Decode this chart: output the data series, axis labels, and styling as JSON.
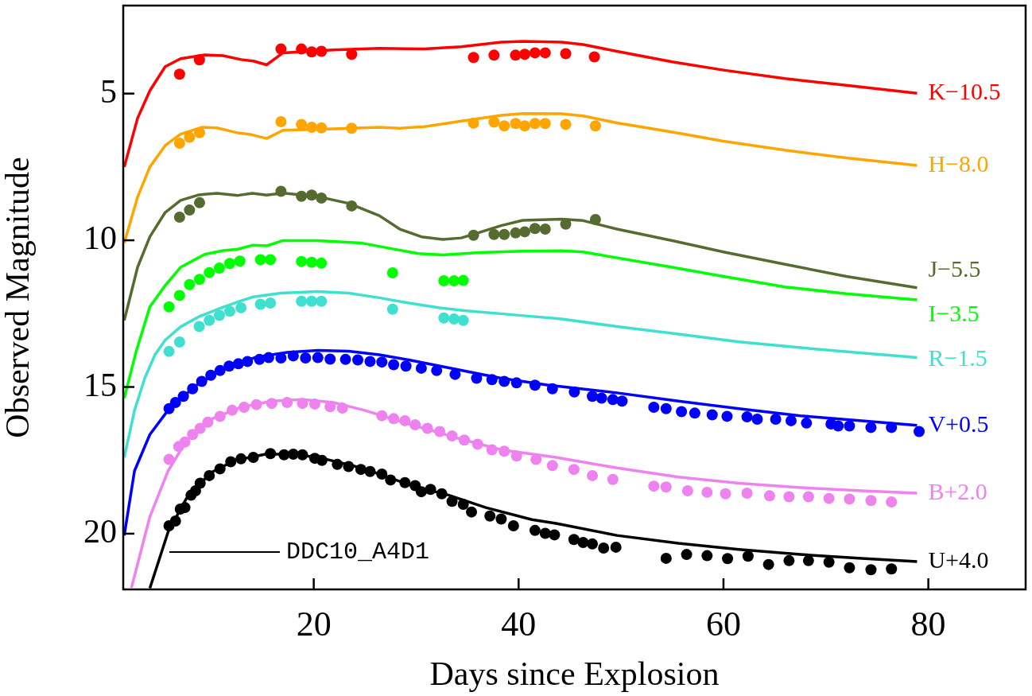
{
  "chart_data": {
    "type": "line",
    "xlabel": "Days since Explosion",
    "ylabel": "Observed Magnitude",
    "marker": "circle",
    "xlim": [
      1.4,
      89.5
    ],
    "ylim": [
      21.9,
      2.0
    ],
    "xticks": [
      20,
      40,
      60,
      80
    ],
    "yticks": [
      5,
      10,
      15,
      20
    ],
    "series": [
      {
        "name": "K−10.5",
        "marker": "none",
        "color": "#ff0000",
        "x": [
          1.5,
          2.8,
          4.0,
          5.5,
          7.0,
          9.36,
          11.15,
          12.9,
          14.1,
          15.4,
          17.0,
          21.9,
          26.4,
          30.8,
          34.4,
          38.3,
          40.4,
          44.2,
          46.3,
          49.6,
          55.0,
          60.0,
          66.0,
          72.0,
          78.9
        ],
        "values": [
          7.5,
          5.84,
          4.9,
          4.08,
          3.81,
          3.68,
          3.71,
          3.84,
          3.89,
          4.02,
          3.61,
          3.51,
          3.46,
          3.48,
          3.4,
          3.25,
          3.22,
          3.25,
          3.33,
          3.56,
          3.92,
          4.2,
          4.49,
          4.72,
          4.99
        ]
      },
      {
        "name": "H−8.0",
        "marker": "none",
        "color": "#ffa500",
        "x": [
          1.5,
          2.8,
          4.0,
          5.5,
          7.0,
          9.06,
          10.55,
          12.6,
          13.8,
          15.4,
          17.0,
          21.9,
          26.4,
          28.4,
          30.8,
          34.4,
          38.3,
          40.4,
          44.2,
          46.3,
          49.6,
          55.0,
          60.0,
          66.0,
          72.0,
          78.9
        ],
        "values": [
          10.09,
          8.53,
          7.5,
          6.77,
          6.38,
          6.15,
          6.17,
          6.34,
          6.39,
          6.53,
          6.25,
          6.2,
          6.15,
          6.18,
          6.13,
          5.94,
          5.74,
          5.68,
          5.69,
          5.76,
          6.0,
          6.31,
          6.62,
          6.93,
          7.19,
          7.45
        ]
      },
      {
        "name": "J−5.5",
        "marker": "none",
        "color": "#556b2f",
        "x": [
          1.5,
          2.8,
          4.0,
          5.5,
          7.0,
          8.8,
          10.55,
          12.6,
          14.0,
          15.4,
          17.0,
          20.4,
          23.4,
          26.4,
          28.4,
          30.5,
          32.6,
          34.4,
          36.2,
          38.3,
          40.4,
          44.2,
          46.3,
          49.6,
          55.0,
          60.0,
          66.0,
          72.0,
          78.9
        ],
        "values": [
          12.73,
          10.92,
          9.88,
          9.05,
          8.64,
          8.45,
          8.4,
          8.47,
          8.4,
          8.46,
          8.39,
          8.51,
          8.74,
          9.16,
          9.62,
          9.88,
          9.97,
          9.92,
          9.73,
          9.5,
          9.32,
          9.28,
          9.33,
          9.62,
          10.01,
          10.4,
          10.82,
          11.23,
          11.62
        ]
      },
      {
        "name": "I−3.5",
        "marker": "none",
        "color": "#00ff00",
        "x": [
          1.5,
          2.65,
          4.0,
          5.5,
          7.0,
          9.36,
          11.15,
          12.6,
          14.0,
          15.4,
          17.0,
          20.4,
          24.6,
          27.8,
          30.2,
          32.6,
          36.2,
          40.4,
          44.2,
          46.3,
          55.0,
          60.0,
          66.0,
          72.0,
          78.9
        ],
        "values": [
          15.38,
          13.81,
          12.27,
          11.54,
          10.92,
          10.48,
          10.35,
          10.3,
          10.17,
          10.19,
          10.01,
          10.01,
          10.09,
          10.3,
          10.45,
          10.5,
          10.42,
          10.37,
          10.36,
          10.4,
          10.92,
          11.23,
          11.59,
          11.82,
          12.03
        ]
      },
      {
        "name": "R−1.5",
        "marker": "none",
        "color": "#40e0d0",
        "x": [
          1.5,
          2.5,
          3.5,
          4.5,
          5.5,
          7.0,
          8.8,
          10.85,
          12.9,
          14.1,
          16.8,
          20.4,
          23.4,
          26.4,
          29.3,
          32.3,
          34.7,
          39.8,
          44.2,
          49.6,
          55.6,
          61.5,
          67.5,
          73.5,
          78.9
        ],
        "values": [
          17.4,
          15.8,
          14.7,
          13.9,
          13.4,
          12.95,
          12.6,
          12.32,
          12.06,
          11.93,
          11.8,
          11.75,
          11.8,
          11.96,
          12.14,
          12.3,
          12.4,
          12.55,
          12.68,
          12.94,
          13.2,
          13.46,
          13.66,
          13.84,
          14.0
        ]
      },
      {
        "name": "V+0.5",
        "marker": "none",
        "color": "#0000ff",
        "x": [
          1.5,
          2.5,
          4.0,
          5.78,
          8.46,
          11.4,
          14.4,
          17.4,
          20.4,
          23.4,
          26.4,
          29.3,
          33.8,
          38.3,
          42.8,
          49.6,
          55.6,
          61.5,
          67.5,
          73.5,
          78.9
        ],
        "values": [
          20.06,
          17.86,
          16.62,
          15.79,
          14.96,
          14.34,
          13.98,
          13.82,
          13.75,
          13.78,
          13.9,
          14.08,
          14.39,
          14.7,
          14.93,
          15.2,
          15.48,
          15.74,
          15.98,
          16.15,
          16.31
        ]
      },
      {
        "name": "B+2.0",
        "marker": "none",
        "color": "#ee82ee",
        "x": [
          2.2,
          4.0,
          5.78,
          7.57,
          9.95,
          12.9,
          15.9,
          18.9,
          21.9,
          24.9,
          29.3,
          33.8,
          38.3,
          43.65,
          49.6,
          55.6,
          61.5,
          67.5,
          73.5,
          78.9
        ],
        "values": [
          21.85,
          19.42,
          17.86,
          16.83,
          16.1,
          15.69,
          15.48,
          15.43,
          15.53,
          15.79,
          16.26,
          16.72,
          17.14,
          17.4,
          17.76,
          18.07,
          18.28,
          18.43,
          18.54,
          18.62
        ]
      },
      {
        "name": "U+4.0",
        "marker": "none",
        "color": "#000000",
        "x": [
          4.0,
          5.78,
          7.57,
          9.95,
          12.3,
          15.3,
          18.3,
          21.3,
          24.9,
          29.3,
          33.2,
          36.8,
          41.3,
          43.65,
          49.6,
          55.6,
          61.5,
          67.5,
          73.5,
          78.9
        ],
        "values": [
          21.86,
          19.94,
          18.8,
          17.92,
          17.5,
          17.29,
          17.29,
          17.47,
          17.78,
          18.33,
          18.69,
          19.11,
          19.52,
          19.65,
          20.06,
          20.33,
          20.54,
          20.71,
          20.84,
          20.95
        ]
      },
      {
        "type": "scatter",
        "color": "#ff0000",
        "x": [
          6.9,
          8.84,
          16.8,
          18.8,
          19.8,
          20.75,
          23.7,
          35.6,
          37.6,
          39.7,
          40.6,
          41.6,
          42.6,
          44.6,
          47.4
        ],
        "values": [
          4.34,
          3.85,
          3.48,
          3.48,
          3.58,
          3.56,
          3.66,
          3.77,
          3.69,
          3.69,
          3.66,
          3.61,
          3.61,
          3.64,
          3.75
        ]
      },
      {
        "type": "scatter",
        "color": "#ffa500",
        "x": [
          6.9,
          7.87,
          8.85,
          16.8,
          18.8,
          19.8,
          20.75,
          23.7,
          35.6,
          37.6,
          38.6,
          39.7,
          40.6,
          41.6,
          42.6,
          44.6,
          47.5
        ],
        "values": [
          6.69,
          6.49,
          6.33,
          5.96,
          6.05,
          6.15,
          6.17,
          6.18,
          6.01,
          5.97,
          6.1,
          6.02,
          6.1,
          6.02,
          6.02,
          6.05,
          6.1
        ]
      },
      {
        "type": "scatter",
        "color": "#556b2f",
        "x": [
          6.9,
          7.87,
          8.85,
          16.8,
          18.8,
          19.8,
          20.75,
          23.7,
          35.6,
          37.6,
          38.6,
          39.7,
          40.6,
          41.6,
          42.6,
          44.6,
          47.5
        ],
        "values": [
          9.21,
          8.97,
          8.72,
          8.33,
          8.5,
          8.46,
          8.56,
          8.83,
          9.83,
          9.8,
          9.8,
          9.75,
          9.71,
          9.6,
          9.62,
          9.45,
          9.29
        ]
      },
      {
        "type": "scatter",
        "color": "#00ff00",
        "x": [
          5.87,
          6.9,
          7.87,
          8.85,
          9.8,
          10.79,
          11.8,
          12.79,
          14.8,
          15.77,
          18.8,
          19.8,
          20.75,
          27.7,
          32.7,
          33.7,
          34.6
        ],
        "values": [
          12.27,
          11.88,
          11.51,
          11.33,
          11.1,
          10.95,
          10.79,
          10.71,
          10.66,
          10.66,
          10.72,
          10.75,
          10.78,
          11.11,
          11.38,
          11.38,
          11.37
        ]
      },
      {
        "type": "scatter",
        "color": "#40e0d0",
        "x": [
          5.87,
          6.9,
          8.82,
          9.8,
          10.79,
          11.8,
          12.9,
          14.8,
          15.77,
          18.8,
          19.8,
          20.75,
          27.7,
          32.7,
          33.7,
          34.6
        ],
        "values": [
          13.79,
          13.47,
          12.94,
          12.73,
          12.56,
          12.42,
          12.3,
          12.18,
          12.14,
          12.08,
          12.08,
          12.08,
          12.35,
          12.65,
          12.68,
          12.73
        ]
      },
      {
        "type": "scatter",
        "color": "#0000ff",
        "x": [
          5.87,
          6.5,
          7.27,
          8.17,
          9.06,
          9.95,
          10.85,
          11.74,
          12.64,
          13.53,
          14.7,
          15.6,
          16.8,
          18.0,
          19.2,
          20.4,
          21.6,
          23.1,
          24.3,
          25.5,
          26.65,
          27.8,
          29.0,
          30.5,
          32.0,
          33.8,
          35.9,
          37.4,
          38.6,
          39.8,
          41.6,
          43.3,
          45.44,
          47.2,
          48.1,
          49.2,
          50.1,
          53.2,
          54.4,
          55.9,
          57.2,
          58.9,
          60.35,
          62.3,
          63.3,
          65.1,
          66.6,
          68.1,
          70.5,
          71.2,
          72.3,
          74.4,
          76.4,
          79.1
        ],
        "values": [
          15.74,
          15.53,
          15.32,
          15.06,
          14.81,
          14.6,
          14.44,
          14.29,
          14.21,
          14.13,
          14.06,
          14.0,
          14.01,
          13.94,
          14.01,
          14.0,
          14.05,
          14.06,
          14.08,
          14.13,
          14.15,
          14.24,
          14.29,
          14.36,
          14.44,
          14.57,
          14.7,
          14.75,
          14.81,
          14.86,
          14.94,
          15.06,
          15.17,
          15.32,
          15.38,
          15.43,
          15.48,
          15.69,
          15.74,
          15.84,
          15.89,
          15.95,
          16.0,
          16.02,
          16.1,
          16.1,
          16.15,
          16.23,
          16.26,
          16.33,
          16.33,
          16.38,
          16.38,
          16.52
        ]
      },
      {
        "type": "scatter",
        "color": "#ee82ee",
        "x": [
          5.87,
          6.82,
          7.42,
          8.17,
          8.91,
          9.66,
          10.85,
          12.04,
          13.2,
          14.4,
          15.9,
          17.4,
          18.9,
          20.1,
          21.6,
          22.8,
          26.65,
          27.8,
          28.9,
          29.9,
          31.1,
          32.3,
          33.5,
          34.7,
          36.0,
          37.4,
          38.6,
          39.8,
          41.7,
          43.3,
          45.4,
          47.2,
          49.2,
          53.2,
          54.4,
          56.5,
          58.4,
          60.2,
          62.3,
          64.5,
          66.4,
          68.3,
          70.3,
          72.3,
          74.4,
          76.4
        ],
        "values": [
          17.47,
          17.03,
          16.88,
          16.62,
          16.41,
          16.2,
          16.0,
          15.79,
          15.69,
          15.6,
          15.56,
          15.53,
          15.56,
          15.58,
          15.67,
          15.72,
          15.98,
          16.08,
          16.15,
          16.29,
          16.41,
          16.52,
          16.67,
          16.81,
          16.95,
          17.14,
          17.19,
          17.35,
          17.47,
          17.68,
          17.81,
          18.02,
          18.15,
          18.38,
          18.41,
          18.54,
          18.59,
          18.64,
          18.62,
          18.71,
          18.74,
          18.74,
          18.8,
          18.82,
          18.87,
          18.92
        ]
      },
      {
        "type": "scatter",
        "color": "#000000",
        "x": [
          5.87,
          6.5,
          6.97,
          7.42,
          8.02,
          8.46,
          8.91,
          9.8,
          10.85,
          11.9,
          12.9,
          14.1,
          15.77,
          17.1,
          18.0,
          18.9,
          20.1,
          20.8,
          22.3,
          23.4,
          24.6,
          25.5,
          26.65,
          27.5,
          28.9,
          29.9,
          30.5,
          31.4,
          32.5,
          33.5,
          34.6,
          35.4,
          37.2,
          38.3,
          39.5,
          41.6,
          42.6,
          43.5,
          45.4,
          46.3,
          47.2,
          48.3,
          49.5,
          54.4,
          56.4,
          58.4,
          60.4,
          62.4,
          64.4,
          66.4,
          68.3,
          70.3,
          72.3,
          74.4,
          76.4
        ],
        "values": [
          19.73,
          19.57,
          19.16,
          19.11,
          18.69,
          18.54,
          18.28,
          18.02,
          17.79,
          17.55,
          17.45,
          17.4,
          17.27,
          17.31,
          17.29,
          17.31,
          17.43,
          17.5,
          17.64,
          17.71,
          17.81,
          17.88,
          17.97,
          18.17,
          18.26,
          18.36,
          18.57,
          18.49,
          18.64,
          18.9,
          19.0,
          19.26,
          19.4,
          19.5,
          19.73,
          19.89,
          19.99,
          20.04,
          20.2,
          20.3,
          20.35,
          20.49,
          20.46,
          20.84,
          20.71,
          20.75,
          20.85,
          20.77,
          21.05,
          20.92,
          20.92,
          20.97,
          21.16,
          21.23,
          21.2
        ]
      }
    ],
    "annotations": [
      "DDC10_A4D1"
    ]
  }
}
